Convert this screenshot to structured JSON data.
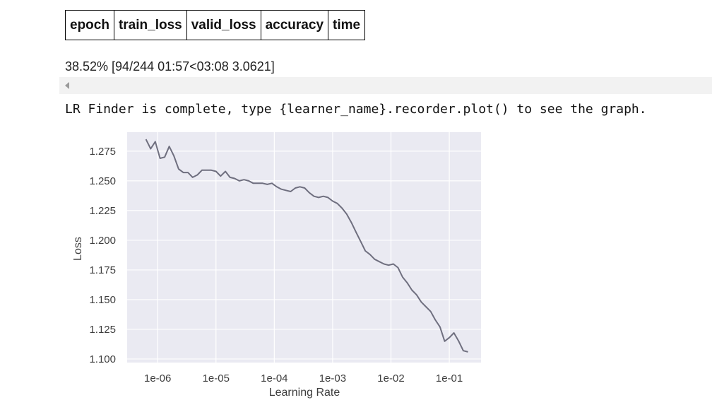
{
  "table": {
    "headers": [
      "epoch",
      "train_loss",
      "valid_loss",
      "accuracy",
      "time"
    ]
  },
  "progress": {
    "text": "38.52% [94/244 01:57<03:08 3.0621]"
  },
  "message": {
    "text": "LR Finder is complete, type {learner_name}.recorder.plot() to see the graph."
  },
  "icons": {
    "scroll_left": "chevron-left-icon"
  },
  "chart_data": {
    "type": "line",
    "xlabel": "Learning Rate",
    "ylabel": "Loss",
    "xscale": "log",
    "xlim": [
      3e-07,
      0.35
    ],
    "ylim": [
      1.097,
      1.291
    ],
    "xticks": [
      1e-06,
      1e-05,
      0.0001,
      0.001,
      0.01,
      0.1
    ],
    "xtick_labels": [
      "1e-06",
      "1e-05",
      "1e-04",
      "1e-03",
      "1e-02",
      "1e-01"
    ],
    "yticks": [
      1.1,
      1.125,
      1.15,
      1.175,
      1.2,
      1.225,
      1.25,
      1.275
    ],
    "ytick_labels": [
      "1.100",
      "1.125",
      "1.150",
      "1.175",
      "1.200",
      "1.225",
      "1.250",
      "1.275"
    ],
    "grid": true,
    "background": "#eaeaf2",
    "line_color": "#6f6f7f",
    "series": [
      {
        "x": [
          6.3e-07,
          7.6e-07,
          9.1e-07,
          1.1e-06,
          1.32e-06,
          1.58e-06,
          1.9e-06,
          2.29e-06,
          2.75e-06,
          3.31e-06,
          3.98e-06,
          4.79e-06,
          5.75e-06,
          6.92e-06,
          8.32e-06,
          1e-05,
          1.2e-05,
          1.45e-05,
          1.74e-05,
          2.09e-05,
          2.51e-05,
          3.02e-05,
          3.63e-05,
          4.37e-05,
          5.25e-05,
          6.31e-05,
          7.59e-05,
          9.12e-05,
          0.00011,
          0.000132,
          0.000158,
          0.000191,
          0.000229,
          0.000275,
          0.000331,
          0.000398,
          0.000479,
          0.000575,
          0.000692,
          0.000832,
          0.001,
          0.0012,
          0.00145,
          0.00174,
          0.00209,
          0.00251,
          0.00302,
          0.00363,
          0.00437,
          0.00525,
          0.00631,
          0.00759,
          0.00912,
          0.011,
          0.0132,
          0.0158,
          0.0191,
          0.0229,
          0.0275,
          0.0331,
          0.0398,
          0.0479,
          0.0575,
          0.0692,
          0.0832,
          0.1,
          0.12,
          0.145,
          0.174,
          0.209
        ],
        "y": [
          1.285,
          1.277,
          1.283,
          1.269,
          1.27,
          1.279,
          1.271,
          1.26,
          1.257,
          1.257,
          1.253,
          1.255,
          1.259,
          1.259,
          1.259,
          1.258,
          1.254,
          1.258,
          1.253,
          1.252,
          1.25,
          1.251,
          1.25,
          1.248,
          1.248,
          1.248,
          1.247,
          1.248,
          1.245,
          1.243,
          1.242,
          1.241,
          1.244,
          1.245,
          1.244,
          1.24,
          1.237,
          1.236,
          1.237,
          1.236,
          1.233,
          1.231,
          1.227,
          1.222,
          1.215,
          1.207,
          1.199,
          1.191,
          1.188,
          1.184,
          1.182,
          1.18,
          1.179,
          1.18,
          1.177,
          1.169,
          1.164,
          1.158,
          1.154,
          1.148,
          1.144,
          1.14,
          1.133,
          1.127,
          1.115,
          1.118,
          1.122,
          1.115,
          1.107,
          1.106
        ]
      }
    ]
  }
}
